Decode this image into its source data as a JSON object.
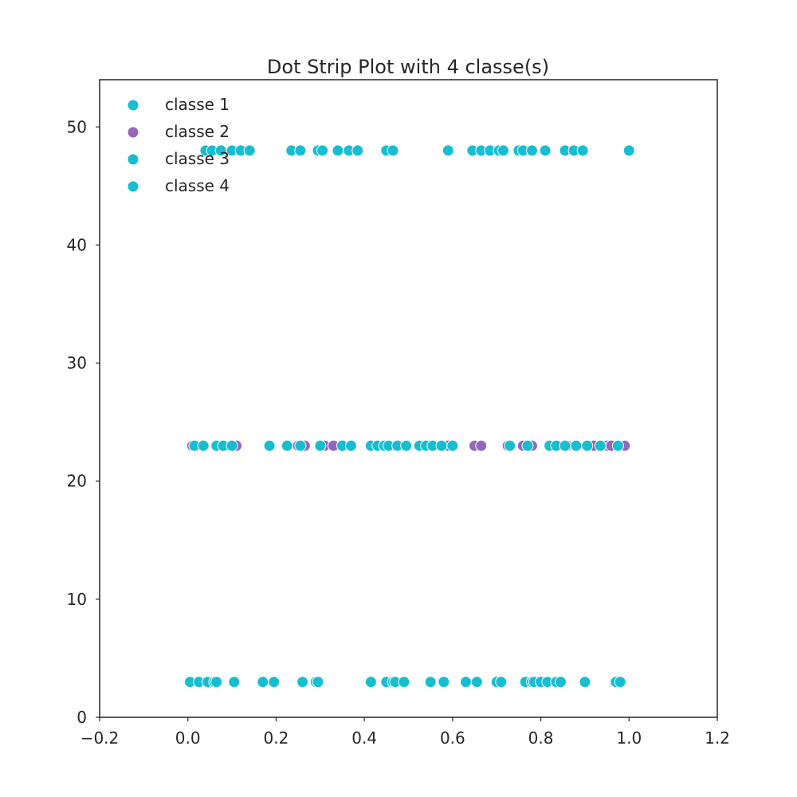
{
  "chart_data": {
    "type": "scatter",
    "title": "Dot Strip Plot with 4 classe(s)",
    "xlabel": "",
    "ylabel": "",
    "xlim": [
      -0.2,
      1.2
    ],
    "ylim": [
      0,
      54
    ],
    "xticks": [
      -0.2,
      0.0,
      0.2,
      0.4,
      0.6,
      0.8,
      1.0,
      1.2
    ],
    "xtick_labels": [
      "−0.2",
      "0.0",
      "0.2",
      "0.4",
      "0.6",
      "0.8",
      "1.0",
      "1.2"
    ],
    "yticks": [
      0,
      10,
      20,
      30,
      40,
      50
    ],
    "ytick_labels": [
      "0",
      "10",
      "20",
      "30",
      "40",
      "50"
    ],
    "grid": false,
    "legend_position": "top-left",
    "series": [
      {
        "name": "classe 1",
        "color": "#17becf",
        "y": 3,
        "x": [
          0.005,
          0.025,
          0.045,
          0.06,
          0.065,
          0.105,
          0.17,
          0.195,
          0.26,
          0.29,
          0.295,
          0.415,
          0.45,
          0.465,
          0.47,
          0.49,
          0.55,
          0.58,
          0.63,
          0.655,
          0.7,
          0.71,
          0.765,
          0.78,
          0.785,
          0.8,
          0.815,
          0.835,
          0.845,
          0.9,
          0.97,
          0.98
        ]
      },
      {
        "name": "classe 2",
        "color": "#9467bd",
        "y": 23,
        "x": [
          0.01,
          0.11,
          0.25,
          0.265,
          0.31,
          0.33,
          0.44,
          0.47,
          0.59,
          0.65,
          0.665,
          0.725,
          0.76,
          0.78,
          0.86,
          0.92,
          0.95,
          0.96,
          0.99
        ]
      },
      {
        "name": "classe 3",
        "color": "#17becf",
        "y": 23,
        "x": [
          0.015,
          0.035,
          0.065,
          0.08,
          0.1,
          0.185,
          0.225,
          0.255,
          0.3,
          0.35,
          0.37,
          0.415,
          0.43,
          0.445,
          0.455,
          0.475,
          0.495,
          0.525,
          0.54,
          0.555,
          0.575,
          0.6,
          0.73,
          0.77,
          0.82,
          0.835,
          0.855,
          0.88,
          0.905,
          0.935,
          0.975
        ]
      },
      {
        "name": "classe 4",
        "color": "#17becf",
        "y": 48,
        "x": [
          0.04,
          0.055,
          0.075,
          0.1,
          0.12,
          0.14,
          0.235,
          0.255,
          0.295,
          0.305,
          0.34,
          0.365,
          0.385,
          0.45,
          0.465,
          0.59,
          0.645,
          0.665,
          0.685,
          0.705,
          0.715,
          0.75,
          0.76,
          0.78,
          0.81,
          0.855,
          0.875,
          0.895,
          1.0
        ]
      }
    ]
  }
}
